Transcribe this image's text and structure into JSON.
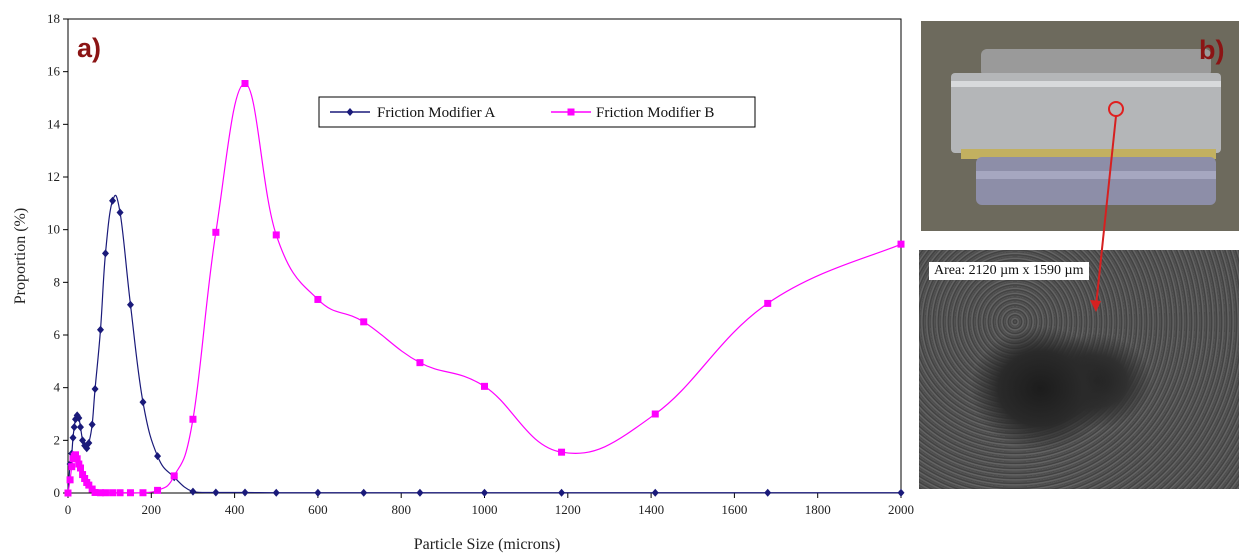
{
  "chart_data": {
    "type": "line",
    "xlabel": "Particle Size (microns)",
    "ylabel": "Proportion (%)",
    "xlim": [
      0,
      2000
    ],
    "ylim": [
      0,
      18
    ],
    "xticks": [
      0,
      200,
      400,
      600,
      800,
      1000,
      1200,
      1400,
      1600,
      1800,
      2000
    ],
    "yticks": [
      0,
      2,
      4,
      6,
      8,
      10,
      12,
      14,
      16,
      18
    ],
    "grid": false,
    "legend_position": "top-center",
    "series": [
      {
        "name": "Friction Modifier A",
        "color": "#1a1a7a",
        "marker": "diamond",
        "x": [
          0,
          5,
          9,
          12,
          15,
          18,
          22,
          26,
          30,
          35,
          40,
          45,
          50,
          58,
          65,
          78,
          90,
          107,
          125,
          150,
          180,
          215,
          255,
          300,
          355,
          425,
          500,
          600,
          710,
          845,
          1000,
          1185,
          1410,
          1680,
          2000
        ],
        "y": [
          0,
          1.1,
          1.5,
          2.1,
          2.5,
          2.8,
          2.95,
          2.85,
          2.5,
          2.0,
          1.8,
          1.7,
          1.9,
          2.6,
          3.95,
          6.2,
          9.1,
          11.1,
          10.65,
          7.15,
          3.45,
          1.4,
          0.6,
          0.05,
          0.02,
          0.02,
          0.01,
          0.01,
          0.01,
          0.01,
          0.01,
          0.01,
          0.01,
          0.01,
          0.01
        ]
      },
      {
        "name": "Friction Modifier B",
        "color": "#ff00ff",
        "marker": "square",
        "x": [
          0,
          5,
          9,
          12,
          15,
          18,
          22,
          26,
          30,
          35,
          40,
          45,
          50,
          58,
          65,
          78,
          90,
          107,
          125,
          150,
          180,
          215,
          255,
          300,
          355,
          425,
          500,
          600,
          710,
          845,
          1000,
          1185,
          1410,
          1680,
          2000
        ],
        "y": [
          0,
          0.5,
          1.0,
          1.3,
          1.4,
          1.45,
          1.3,
          1.1,
          0.95,
          0.7,
          0.55,
          0.4,
          0.3,
          0.15,
          0.02,
          0.01,
          0.01,
          0.01,
          0.01,
          0.01,
          0.01,
          0.1,
          0.65,
          2.8,
          9.9,
          15.55,
          9.8,
          7.35,
          6.5,
          4.95,
          4.05,
          1.55,
          3.0,
          7.2,
          9.45
        ]
      }
    ]
  },
  "panels": {
    "a_label": "a)",
    "b_label": "b)",
    "area_label": "Area: 2120 µm  x 1590 µm"
  }
}
